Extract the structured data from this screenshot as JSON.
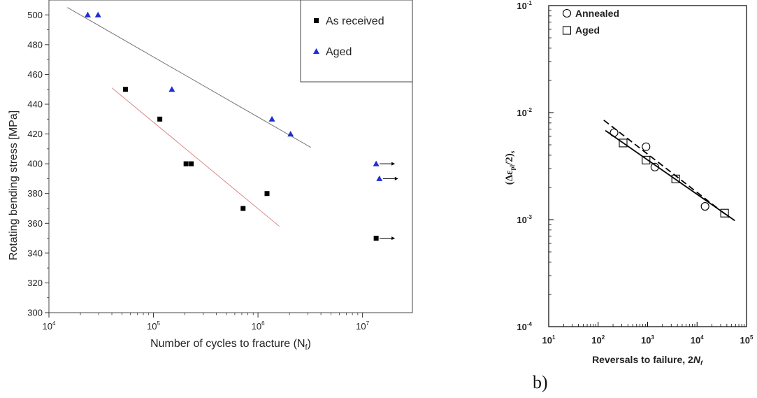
{
  "chart_data": [
    {
      "type": "scatter",
      "title": "",
      "xlabel": "Number of cycles to fracture (N",
      "xlabel_sub": "f",
      "xlabel_tail": ")",
      "ylabel": "Rotating bending stress [MPa]",
      "xscale": "log",
      "xlim": [
        10000,
        30000000
      ],
      "ylim": [
        300,
        510
      ],
      "x_ticks": [
        10000,
        100000,
        1000000,
        10000000
      ],
      "x_tick_labels": [
        {
          "base": "10",
          "exp": "4"
        },
        {
          "base": "10",
          "exp": "5"
        },
        {
          "base": "10",
          "exp": "6"
        },
        {
          "base": "10",
          "exp": "7"
        }
      ],
      "y_ticks": [
        300,
        320,
        340,
        360,
        380,
        400,
        420,
        440,
        460,
        480,
        500
      ],
      "legend_position": "top-right",
      "grid": false,
      "series": [
        {
          "name": "As received",
          "marker": "square",
          "color": "#000000",
          "points": [
            {
              "x": 54000,
              "y": 450
            },
            {
              "x": 115000,
              "y": 430
            },
            {
              "x": 205000,
              "y": 400
            },
            {
              "x": 230000,
              "y": 400
            },
            {
              "x": 720000,
              "y": 370
            },
            {
              "x": 1220000,
              "y": 380
            },
            {
              "x": 13500000,
              "y": 350,
              "runout": true
            }
          ],
          "fit_line": {
            "color": "#d98a8a",
            "from": {
              "x": 40000,
              "y": 451
            },
            "to": {
              "x": 1600000,
              "y": 358
            }
          }
        },
        {
          "name": "Aged",
          "marker": "triangle",
          "color": "#1f2fd0",
          "points": [
            {
              "x": 23500,
              "y": 500
            },
            {
              "x": 29500,
              "y": 500
            },
            {
              "x": 150000,
              "y": 450
            },
            {
              "x": 1360000,
              "y": 430
            },
            {
              "x": 2050000,
              "y": 420
            },
            {
              "x": 13500000,
              "y": 400,
              "runout": true
            },
            {
              "x": 14500000,
              "y": 390,
              "runout": true
            }
          ],
          "fit_line": {
            "color": "#777777",
            "from": {
              "x": 15000,
              "y": 505
            },
            "to": {
              "x": 3200000,
              "y": 411
            }
          }
        }
      ]
    },
    {
      "type": "scatter",
      "title": "",
      "xlabel": "Reversals to failure, 2",
      "xlabel_italic": "N",
      "xlabel_sub": "f",
      "ylabel_parts": {
        "open": "(Δε",
        "sub": "pl",
        "mid": "/2)",
        "sub2": "s"
      },
      "xscale": "log",
      "yscale": "log",
      "xlim": [
        10,
        100000
      ],
      "ylim": [
        0.0001,
        0.1
      ],
      "x_ticks": [
        10,
        100,
        1000,
        10000,
        100000
      ],
      "x_tick_labels": [
        {
          "base": "10",
          "exp": "1"
        },
        {
          "base": "10",
          "exp": "2"
        },
        {
          "base": "10",
          "exp": "3"
        },
        {
          "base": "10",
          "exp": "4"
        },
        {
          "base": "10",
          "exp": "5"
        }
      ],
      "y_ticks": [
        0.0001,
        0.001,
        0.01,
        0.1
      ],
      "y_tick_labels": [
        {
          "base": "10",
          "exp": "-4"
        },
        {
          "base": "10",
          "exp": "-3"
        },
        {
          "base": "10",
          "exp": "-2"
        },
        {
          "base": "10",
          "exp": "-1"
        }
      ],
      "legend_position": "top-left",
      "grid": false,
      "series": [
        {
          "name": "Annealed",
          "marker": "circle",
          "points": [
            {
              "x": 210,
              "y": 0.0065
            },
            {
              "x": 930,
              "y": 0.0048
            },
            {
              "x": 1400,
              "y": 0.0031
            },
            {
              "x": 14500,
              "y": 0.00133
            }
          ],
          "fit_line": {
            "style": "dashed",
            "from": {
              "x": 130,
              "y": 0.0085
            },
            "to": {
              "x": 45000,
              "y": 0.00105
            }
          }
        },
        {
          "name": "Aged",
          "marker": "square",
          "points": [
            {
              "x": 320,
              "y": 0.0052
            },
            {
              "x": 930,
              "y": 0.0036
            },
            {
              "x": 3700,
              "y": 0.0024
            },
            {
              "x": 36000,
              "y": 0.00115
            }
          ],
          "fit_line": {
            "style": "solid",
            "from": {
              "x": 140,
              "y": 0.0068
            },
            "to": {
              "x": 58000,
              "y": 0.00098
            }
          }
        }
      ]
    }
  ],
  "panel_label_b": "b)"
}
